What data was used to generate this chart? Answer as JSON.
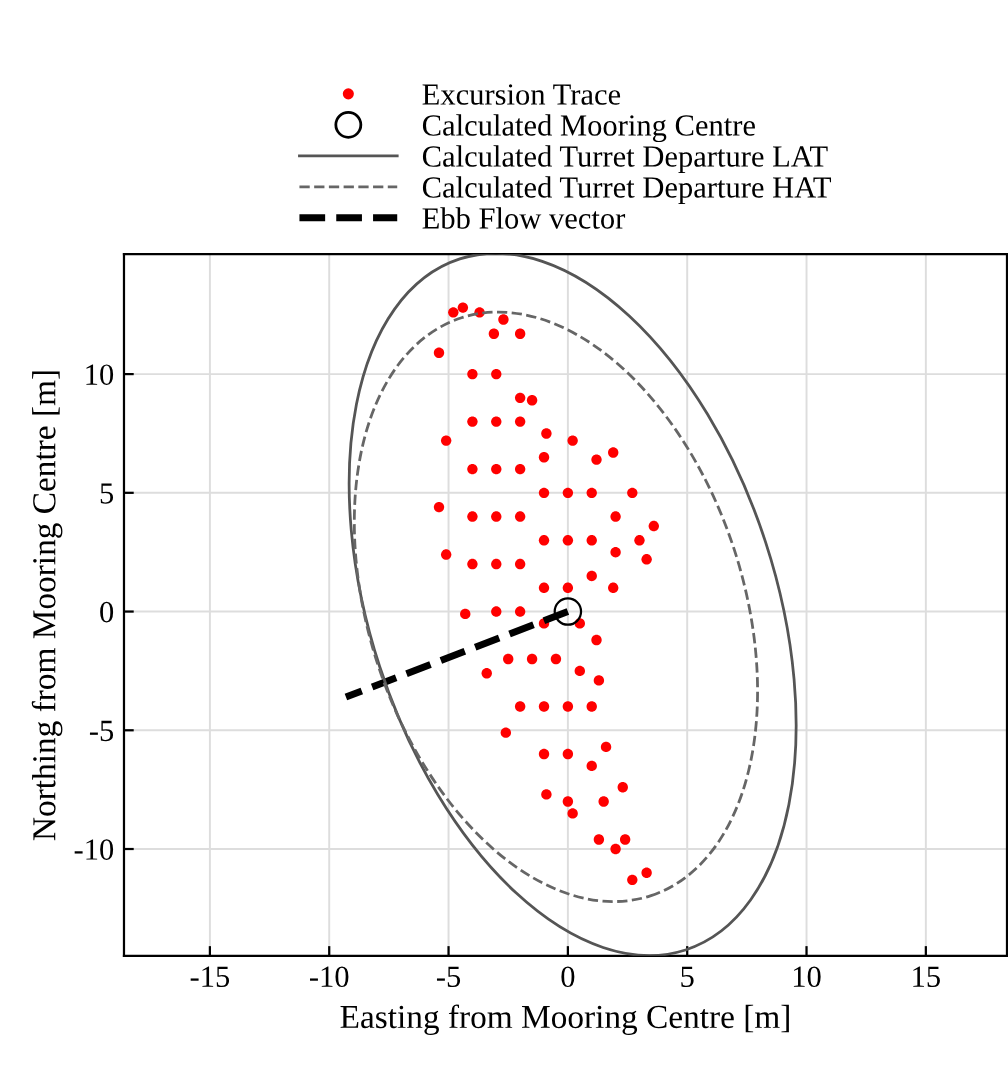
{
  "chart_data": {
    "type": "scatter",
    "xlabel": "Easting from Mooring Centre [m]",
    "ylabel": "Northing from Mooring Centre [m]",
    "xlim": [
      -18.6,
      18.4
    ],
    "ylim": [
      -14.5,
      15.05
    ],
    "xticks": [
      -15,
      -10,
      -5,
      0,
      5,
      10,
      15
    ],
    "yticks": [
      -10,
      -5,
      0,
      5,
      10
    ],
    "grid": true,
    "legend": "top",
    "annotations": [
      "Calculated Turret Departure LAT",
      "Calculated Turret Departure HAT"
    ],
    "series": [
      {
        "name": "Excursion Trace",
        "marker": "circle",
        "color": "#ff0000",
        "x": [
          -4.4,
          -5.4,
          -5.1,
          -5.4,
          -5.1,
          -4.3,
          -3.4,
          -2.6,
          -0.9,
          0.2,
          1.3,
          2.7,
          3.3,
          2.4,
          2.3,
          1.6,
          1.3,
          1.2,
          1.9,
          3.3,
          3.6,
          2.7,
          1.9,
          1.2,
          0.2,
          -0.9,
          -1.5,
          -2.0,
          -2.7,
          -3.1,
          -3.7,
          -4.8,
          -4,
          -3,
          -2,
          -4,
          -3,
          -2,
          -1,
          -4,
          -3,
          -2,
          -1,
          0,
          1,
          2,
          -4,
          -3,
          -2,
          -1,
          0,
          1,
          2,
          3,
          -4,
          -3,
          -2,
          -1,
          0,
          1,
          -3,
          -2,
          -1,
          0.5,
          -2.5,
          -1.5,
          -0.5,
          0.5,
          -2,
          -1,
          0,
          1,
          -1,
          0,
          1,
          0,
          1.5,
          2
        ],
        "values": [
          12.8,
          10.9,
          7.2,
          4.4,
          2.4,
          -0.1,
          -2.6,
          -5.1,
          -7.7,
          -8.5,
          -9.6,
          -11.3,
          -11.0,
          -9.6,
          -7.4,
          -5.7,
          -2.9,
          -1.2,
          1.0,
          2.2,
          3.6,
          5.0,
          6.7,
          6.4,
          7.2,
          7.5,
          8.9,
          11.7,
          12.3,
          11.7,
          12.6,
          12.6,
          10,
          10,
          9,
          8,
          8,
          8,
          6.5,
          6,
          6,
          6,
          5,
          5,
          5,
          4,
          4,
          4,
          4,
          3,
          3,
          3,
          2.5,
          3,
          2,
          2,
          2,
          1,
          1,
          1.5,
          0,
          0,
          -0.5,
          -0.5,
          -2,
          -2,
          -2,
          -2.5,
          -4,
          -4,
          -4,
          -4,
          -6,
          -6,
          -6.5,
          -8,
          -8,
          -10
        ]
      },
      {
        "name": "Calculated Mooring Centre",
        "marker": "circle",
        "color": "#000000",
        "x": [
          0
        ],
        "values": [
          0
        ]
      },
      {
        "name": "Ebb Flow vector",
        "type": "line",
        "line_style": "dashed",
        "color": "#000000",
        "x": [
          0,
          -9.3
        ],
        "values": [
          0,
          -3.6
        ]
      }
    ]
  }
}
